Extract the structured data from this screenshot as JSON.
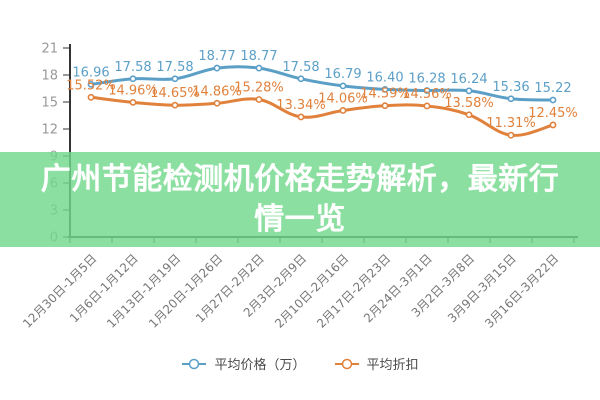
{
  "overlay_title": {
    "text": "广州节能检测机价格走势解析，最新行情一览",
    "lines": [
      "广州节能检测机价格走势解析，最新行",
      "情一览"
    ]
  },
  "colors": {
    "price_series": "#5b9fc7",
    "discount_series": "#e0813c",
    "banner_background": "rgba(113, 216, 139, 0.82)",
    "axis_line": "#333333",
    "y_tick_label": "#999999",
    "x_tick_label": "#777777",
    "legend_text": "#4a4a4a",
    "marker_fill": "#ffffff"
  },
  "chart_data": {
    "type": "line",
    "smooth": true,
    "grid": false,
    "legend_position": "bottom",
    "categories": [
      "12月30日-1月5日",
      "1月6日-1月12日",
      "1月13日-1月19日",
      "1月20日-1月26日",
      "1月27日-2月2日",
      "2月3日-2月9日",
      "2月10日-2月16日",
      "2月17日-2月23日",
      "2月24日-3月1日",
      "3月2日-3月8日",
      "3月9日-3月15日",
      "3月16日-3月22日"
    ],
    "series": [
      {
        "name": "平均价格（万）",
        "color": "#5b9fc7",
        "label_suffix": "",
        "values": [
          16.96,
          17.58,
          17.58,
          18.77,
          18.77,
          17.58,
          16.79,
          16.4,
          16.28,
          16.24,
          15.36,
          15.22
        ]
      },
      {
        "name": "平均折扣",
        "color": "#e0813c",
        "label_suffix": "%",
        "values": [
          15.52,
          14.96,
          14.65,
          14.86,
          15.28,
          13.34,
          14.06,
          14.59,
          14.56,
          13.58,
          11.31,
          12.45
        ]
      }
    ],
    "xlabel": "",
    "ylabel": "",
    "ylim": [
      0,
      21
    ],
    "y_ticks": [
      0,
      3,
      6,
      9,
      12,
      15,
      18,
      21
    ]
  }
}
